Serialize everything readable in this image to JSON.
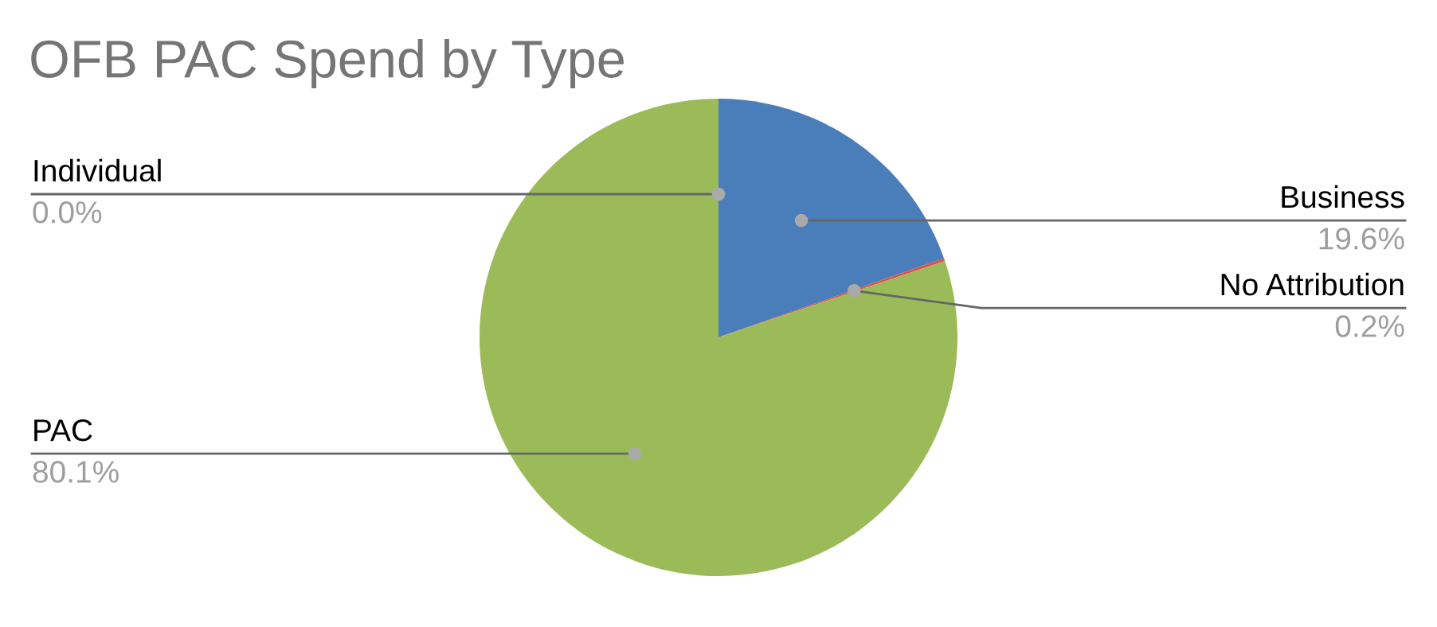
{
  "chart_data": {
    "type": "pie",
    "title": "OFB PAC Spend by Type",
    "categories": [
      "Business",
      "No Attribution",
      "PAC",
      "Individual"
    ],
    "values": [
      19.6,
      0.2,
      80.1,
      0.0
    ],
    "colors": [
      "#4a7ebb",
      "#e0504a",
      "#9bbb59",
      "#8064a2"
    ],
    "value_labels": [
      "19.6%",
      "0.2%",
      "80.1%",
      "0.0%"
    ]
  }
}
